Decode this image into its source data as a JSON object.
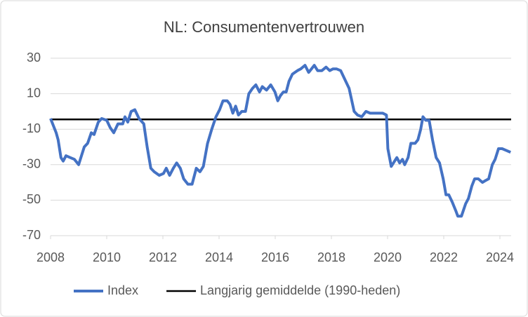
{
  "chart_data": {
    "type": "line",
    "title": "NL: Consumentenvertrouwen",
    "x": [
      2008.0,
      2008.2,
      2008.27,
      2008.37,
      2008.45,
      2008.55,
      2008.7,
      2008.85,
      2009.0,
      2009.2,
      2009.32,
      2009.45,
      2009.55,
      2009.7,
      2009.82,
      2010.0,
      2010.12,
      2010.25,
      2010.4,
      2010.57,
      2010.65,
      2010.75,
      2010.87,
      2011.0,
      2011.15,
      2011.32,
      2011.44,
      2011.57,
      2011.69,
      2011.87,
      2012.02,
      2012.12,
      2012.24,
      2012.37,
      2012.49,
      2012.62,
      2012.74,
      2012.89,
      2013.04,
      2013.19,
      2013.32,
      2013.44,
      2013.59,
      2013.74,
      2013.89,
      2014.02,
      2014.14,
      2014.29,
      2014.39,
      2014.49,
      2014.59,
      2014.69,
      2014.81,
      2014.94,
      2015.06,
      2015.19,
      2015.31,
      2015.44,
      2015.54,
      2015.69,
      2015.84,
      2015.99,
      2016.09,
      2016.19,
      2016.29,
      2016.39,
      2016.49,
      2016.61,
      2016.79,
      2016.91,
      2017.06,
      2017.19,
      2017.29,
      2017.39,
      2017.51,
      2017.66,
      2017.81,
      2017.94,
      2018.06,
      2018.18,
      2018.33,
      2018.48,
      2018.63,
      2018.81,
      2018.93,
      2019.08,
      2019.23,
      2019.38,
      2019.53,
      2019.68,
      2019.83,
      2019.96,
      2020.01,
      2020.13,
      2020.33,
      2020.43,
      2020.53,
      2020.61,
      2020.73,
      2020.83,
      2020.98,
      2021.08,
      2021.18,
      2021.26,
      2021.36,
      2021.48,
      2021.6,
      2021.73,
      2021.85,
      2021.98,
      2022.08,
      2022.18,
      2022.3,
      2022.43,
      2022.5,
      2022.63,
      2022.78,
      2022.88,
      2023.0,
      2023.1,
      2023.23,
      2023.38,
      2023.48,
      2023.6,
      2023.73,
      2023.83,
      2023.95,
      2024.08,
      2024.23,
      2024.38
    ],
    "series": [
      {
        "name": "Index",
        "color": "#4472c4",
        "values": [
          -4,
          -12,
          -16,
          -26,
          -28,
          -25,
          -26,
          -27,
          -30,
          -20,
          -18,
          -12,
          -13,
          -6,
          -4,
          -5,
          -9,
          -12,
          -7,
          -7,
          -3,
          -6,
          0,
          1,
          -4,
          -7,
          -20,
          -32,
          -34,
          -36,
          -35,
          -32,
          -36,
          -32,
          -29,
          -32,
          -38,
          -41,
          -41,
          -32,
          -34,
          -31,
          -18,
          -10,
          -3,
          1,
          6,
          6,
          4,
          -1,
          3,
          -2,
          0,
          0,
          10,
          13,
          15,
          11,
          14,
          12,
          15,
          11,
          6,
          9,
          11,
          11,
          17,
          21,
          23,
          24,
          26,
          22,
          24,
          26,
          23,
          23,
          25,
          23,
          24,
          24,
          23,
          18,
          13,
          0,
          -2,
          -3,
          0,
          -1,
          -1,
          -1,
          -1,
          -2,
          -21,
          -31,
          -26,
          -29,
          -27,
          -30,
          -26,
          -18,
          -18,
          -16,
          -10,
          -3,
          -5,
          -5,
          -16,
          -26,
          -29,
          -38,
          -47,
          -47,
          -51,
          -56,
          -59,
          -59,
          -52,
          -49,
          -42,
          -38,
          -38,
          -40,
          -39,
          -38,
          -30,
          -27,
          -21,
          -21,
          -22,
          -23
        ]
      }
    ],
    "reference_line": {
      "name": "Langjarig gemiddelde (1990-heden)",
      "color": "#000000",
      "value": -4.5
    },
    "xlim": [
      2008,
      2024.4
    ],
    "xticks": [
      2008,
      2010,
      2012,
      2014,
      2016,
      2018,
      2020,
      2022,
      2024
    ],
    "ylim": [
      -70,
      30
    ],
    "yticks": [
      -70,
      -50,
      -30,
      -10,
      10,
      30
    ],
    "grid": true,
    "legend": "bottom"
  }
}
